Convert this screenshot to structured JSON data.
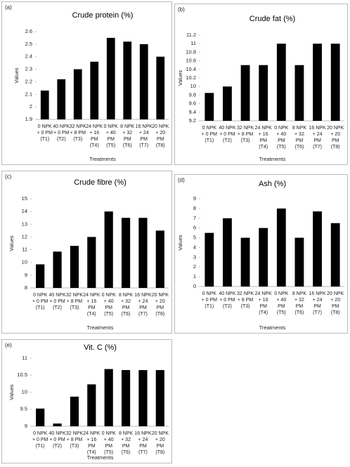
{
  "chart_data": [
    {
      "type": "bar",
      "panel_label": "(a)",
      "title": "Crude protein   (%)",
      "ylabel": "Values",
      "xlabel": "Treatments",
      "color": "#000000",
      "categories": [
        [
          "0 NPK",
          "+ 0 PM",
          "(T1)"
        ],
        [
          "40 NPK",
          "+ 0 PM",
          "(T2)"
        ],
        [
          "32 NPK",
          "+ 8 PM",
          "(T3)"
        ],
        [
          "24 NPK",
          "+ 16",
          "PM",
          "(T4)"
        ],
        [
          "0 NPK",
          "+ 40",
          "PM",
          "(T5)"
        ],
        [
          "8 NPK",
          "+ 32",
          "PM",
          "(T6)"
        ],
        [
          "16 NPK",
          "+ 24",
          "PM",
          "(T7)"
        ],
        [
          "20 NPK",
          "+ 20",
          "PM",
          "(T8)"
        ]
      ],
      "values": [
        2.13,
        2.22,
        2.3,
        2.36,
        2.55,
        2.52,
        2.5,
        2.4
      ],
      "ylim": [
        1.9,
        2.6
      ],
      "yticks": [
        1.9,
        2,
        2.1,
        2.2,
        2.3,
        2.4,
        2.5,
        2.6
      ]
    },
    {
      "type": "bar",
      "panel_label": "(b)",
      "title": "Crude fat   (%)",
      "ylabel": "Values",
      "xlabel": "Treatments",
      "color": "#000000",
      "categories": [
        [
          "0 NPK",
          "+ 0 PM",
          "(T1)"
        ],
        [
          "40 NPK",
          "+ 0 PM",
          "(T2)"
        ],
        [
          "32 NPK",
          "+ 8 PM",
          "(T3)"
        ],
        [
          "24 NPK",
          "+ 16",
          "PM",
          "(T4)"
        ],
        [
          "0 NPK",
          "+ 40",
          "PM",
          "(T5)"
        ],
        [
          "8 NPK",
          "+ 32",
          "PM",
          "(T6)"
        ],
        [
          "16 NPK",
          "+ 24",
          "PM",
          "(T7)"
        ],
        [
          "20 NPK",
          "+ 20",
          "PM",
          "(T8)"
        ]
      ],
      "values": [
        9.85,
        10.0,
        10.5,
        10.5,
        11.0,
        10.5,
        11.0,
        11.0
      ],
      "ylim": [
        9.2,
        11.2
      ],
      "yticks": [
        9.2,
        9.4,
        9.6,
        9.8,
        10,
        10.2,
        10.4,
        10.6,
        10.8,
        11,
        11.2
      ]
    },
    {
      "type": "bar",
      "panel_label": "(c)",
      "title": "Crude fibre   (%)",
      "ylabel": "Values",
      "xlabel": "Treatments",
      "color": "#000000",
      "categories": [
        [
          "0 NPK",
          "+ 0 PM",
          "(T1)"
        ],
        [
          "40 NPK",
          "+ 0 PM",
          "(T2)"
        ],
        [
          "32 NPK",
          "+ 8 PM",
          "(T3)"
        ],
        [
          "24 NPK",
          "+ 16",
          "PM",
          "(T4)"
        ],
        [
          "0 NPK",
          "+ 40",
          "PM",
          "(T5)"
        ],
        [
          "8 NPK",
          "+ 32",
          "PM",
          "(T6)"
        ],
        [
          "16 NPK",
          "+ 24",
          "PM",
          "(T7)"
        ],
        [
          "20 NPK",
          "+ 20",
          "PM",
          "(T8)"
        ]
      ],
      "values": [
        9.85,
        10.85,
        11.3,
        12.0,
        14.0,
        13.5,
        13.5,
        12.5
      ],
      "ylim": [
        8,
        15
      ],
      "yticks": [
        8,
        9,
        10,
        11,
        12,
        13,
        14,
        15
      ]
    },
    {
      "type": "bar",
      "panel_label": "(d)",
      "title": "Ash (%)",
      "ylabel": "Values",
      "xlabel": "Treatments",
      "color": "#000000",
      "categories": [
        [
          "0 NPK",
          "+ 0 PM",
          "(T1)"
        ],
        [
          "40 NPK",
          "+ 0 PM",
          "(T2)"
        ],
        [
          "32 NPK",
          "+ 8 PM",
          "(T3)"
        ],
        [
          "24 NPK",
          "+ 16",
          "PM",
          "(T4)"
        ],
        [
          "0 NPK",
          "+ 40",
          "PM",
          "(T5)"
        ],
        [
          "8 NPK",
          "+ 32",
          "PM",
          "(T6)"
        ],
        [
          "16 NPK",
          "+ 24",
          "PM",
          "(T7)"
        ],
        [
          "20 NPK",
          "+ 20",
          "PM",
          "(T8)"
        ]
      ],
      "values": [
        5.5,
        7.0,
        5.0,
        6.0,
        8.0,
        5.0,
        7.7,
        6.5
      ],
      "ylim": [
        0,
        9
      ],
      "yticks": [
        0,
        1,
        2,
        3,
        4,
        5,
        6,
        7,
        8,
        9
      ]
    },
    {
      "type": "bar",
      "panel_label": "(e)",
      "title": "Vit. C (%)",
      "ylabel": "Values",
      "xlabel": "Treatments",
      "color": "#000000",
      "categories": [
        [
          "0 NPK",
          "+ 0 PM",
          "(T1)"
        ],
        [
          "40 NPK",
          "+ 0 PM",
          "(T2)"
        ],
        [
          "32 NPK",
          "+ 8 PM",
          "(T3)"
        ],
        [
          "24 NPK",
          "+ 16",
          "PM",
          "(T4)"
        ],
        [
          "0 NPK",
          "+ 40",
          "PM",
          "(T5)"
        ],
        [
          "8 NPK",
          "+ 32",
          "PM",
          "(T6)"
        ],
        [
          "16 NPK",
          "+ 24",
          "PM",
          "(T7)"
        ],
        [
          "20 NPK",
          "+ 20",
          "PM",
          "(T8)"
        ]
      ],
      "values": [
        9.52,
        9.08,
        9.87,
        10.23,
        10.68,
        10.65,
        10.65,
        10.65
      ],
      "ylim": [
        9,
        11
      ],
      "yticks": [
        9,
        9.5,
        10,
        10.5,
        11
      ]
    }
  ]
}
